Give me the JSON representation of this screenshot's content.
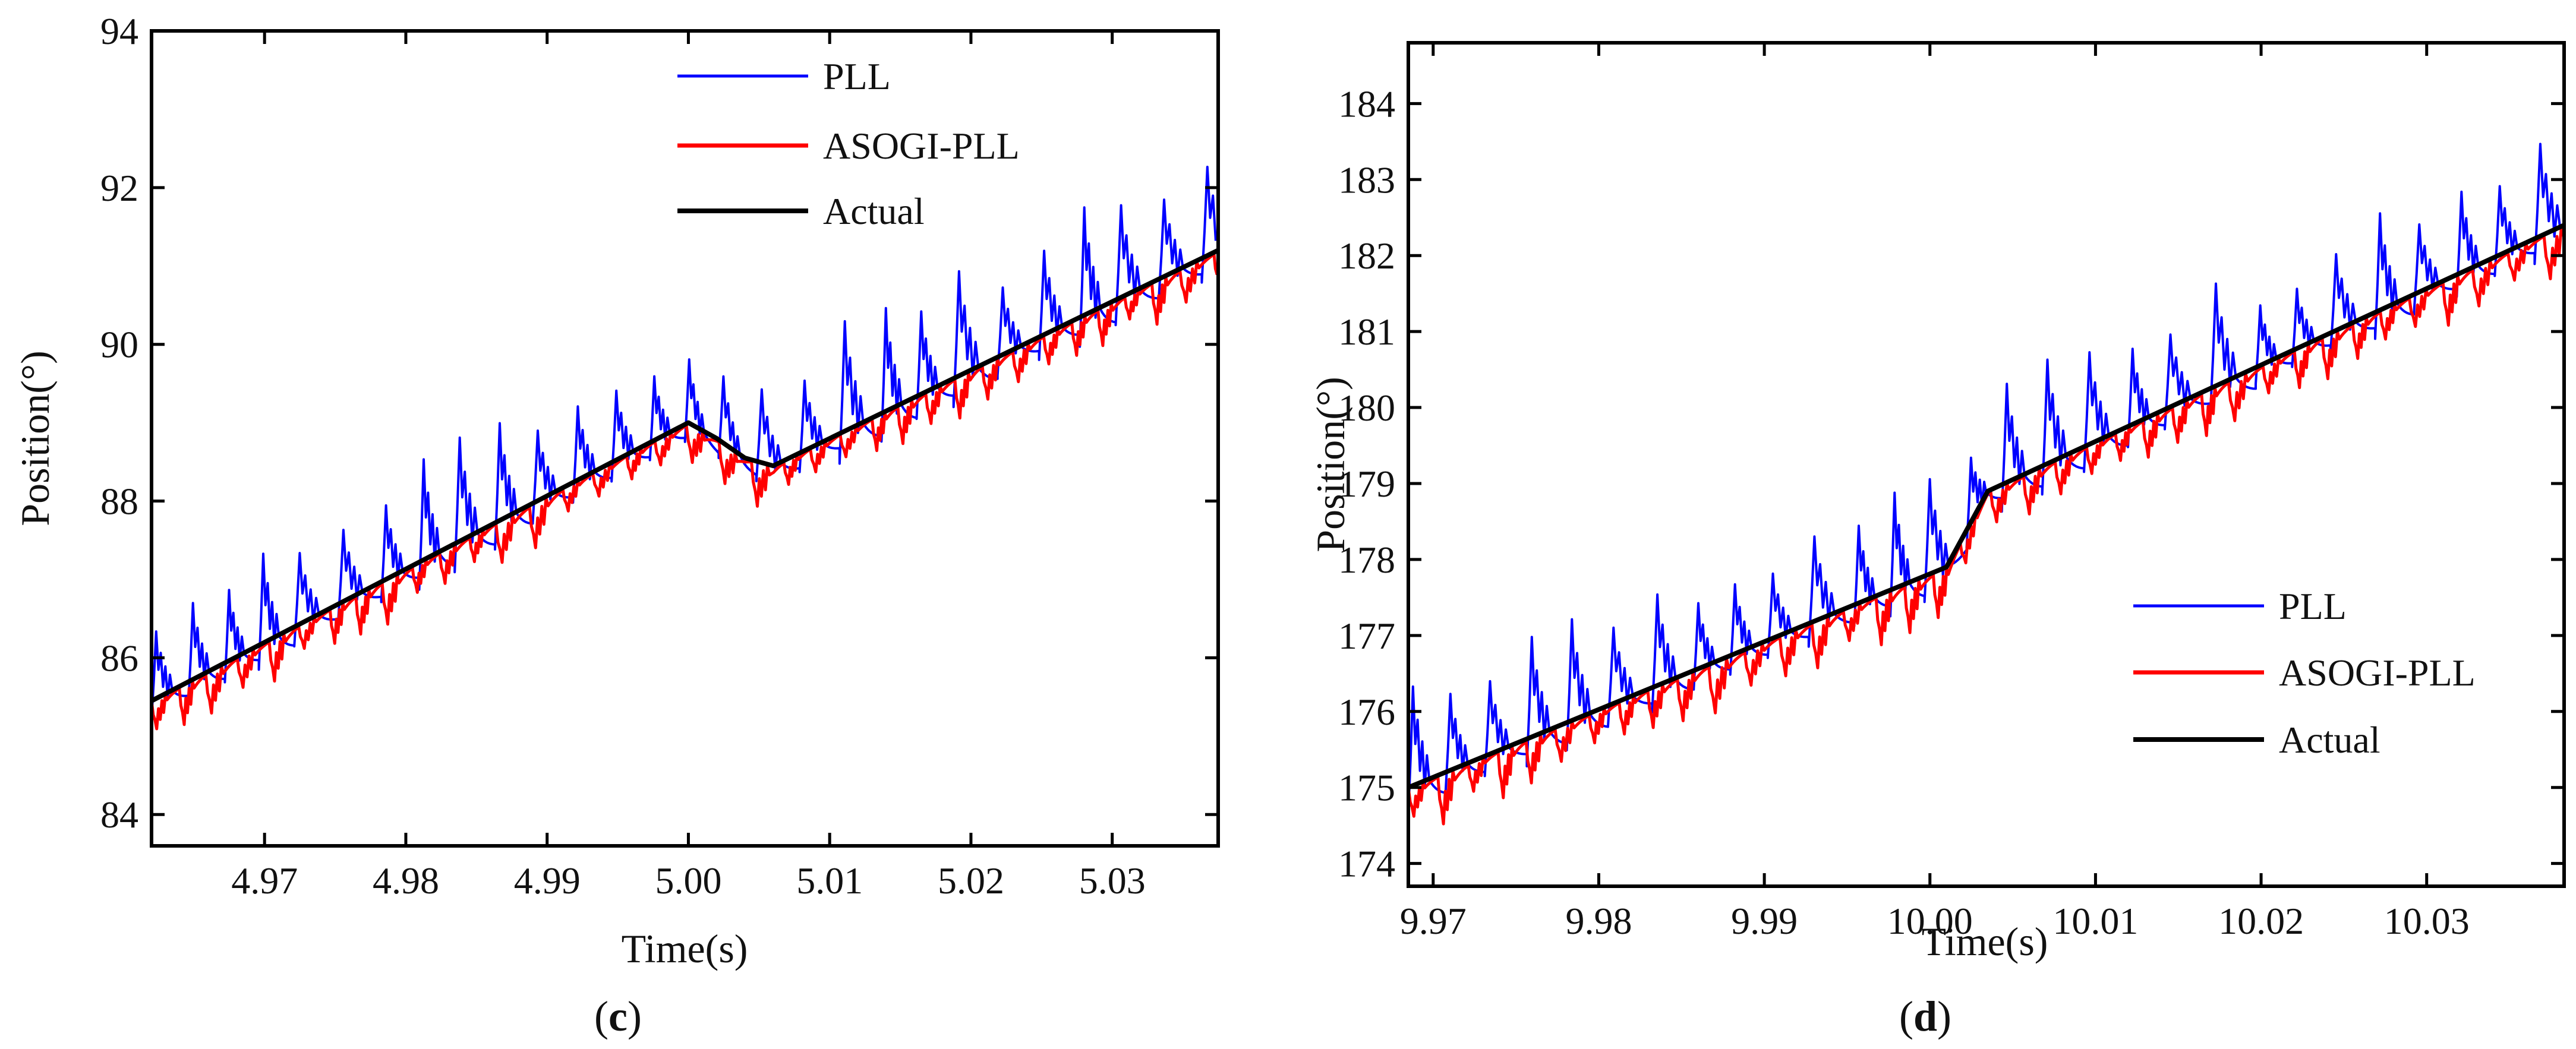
{
  "chart_data": [
    {
      "type": "line",
      "panel": "(c)",
      "caption": {
        "open": "(",
        "letter": "c",
        "close": ")"
      },
      "xlabel": "Time(s)",
      "ylabel": "Position(°)",
      "xlim": [
        4.962,
        5.0375
      ],
      "ylim": [
        83.6,
        94
      ],
      "xticks": [
        4.97,
        4.98,
        4.99,
        5.0,
        5.01,
        5.02,
        5.03
      ],
      "xtick_labels": [
        "4.97",
        "4.98",
        "4.99",
        "5.00",
        "5.01",
        "5.02",
        "5.03"
      ],
      "yticks": [
        84,
        86,
        88,
        90,
        92,
        94
      ],
      "ytick_labels": [
        "84",
        "86",
        "88",
        "90",
        "92",
        "94"
      ],
      "legend_position": "top-center",
      "series": [
        {
          "name": "PLL",
          "color": "#0000ff",
          "style": "sawtooth-high",
          "amplitude": 1.6,
          "period_s": 0.0028
        },
        {
          "name": "ASOGI-PLL",
          "color": "#ff0000",
          "style": "sawtooth-low",
          "amplitude": 1.0,
          "period_s": 0.0021
        },
        {
          "name": "Actual",
          "color": "#000000",
          "style": "reference",
          "x": [
            4.962,
            5.0,
            5.002,
            5.004,
            5.006,
            5.0375
          ],
          "y": [
            85.45,
            89.0,
            88.8,
            88.55,
            88.45,
            91.2
          ]
        }
      ]
    },
    {
      "type": "line",
      "panel": "(d)",
      "caption": {
        "open": "(",
        "letter": "d",
        "close": ")"
      },
      "xlabel": "Time(s)",
      "ylabel": "Position(°)",
      "xlim": [
        9.9685,
        10.0383
      ],
      "ylim": [
        173.7,
        184.8
      ],
      "xticks": [
        9.97,
        9.98,
        9.99,
        10.0,
        10.01,
        10.02,
        10.03
      ],
      "xtick_labels": [
        "9.97",
        "9.98",
        "9.99",
        "10.00",
        "10.01",
        "10.02",
        "10.03"
      ],
      "yticks": [
        174,
        175,
        176,
        177,
        178,
        179,
        180,
        181,
        182,
        183,
        184
      ],
      "ytick_labels": [
        "174",
        "175",
        "176",
        "177",
        "178",
        "179",
        "180",
        "181",
        "182",
        "183",
        "184"
      ],
      "legend_position": "bottom-right",
      "series": [
        {
          "name": "PLL",
          "color": "#0000ff",
          "style": "sawtooth-high",
          "amplitude": 1.5,
          "period_s": 0.0024
        },
        {
          "name": "ASOGI-PLL",
          "color": "#ff0000",
          "style": "sawtooth-low",
          "amplitude": 1.2,
          "period_s": 0.0019
        },
        {
          "name": "Actual",
          "color": "#000000",
          "style": "reference",
          "x": [
            9.9685,
            10.001,
            10.0035,
            10.0383
          ],
          "y": [
            175.0,
            177.9,
            178.9,
            182.4
          ]
        }
      ]
    }
  ]
}
